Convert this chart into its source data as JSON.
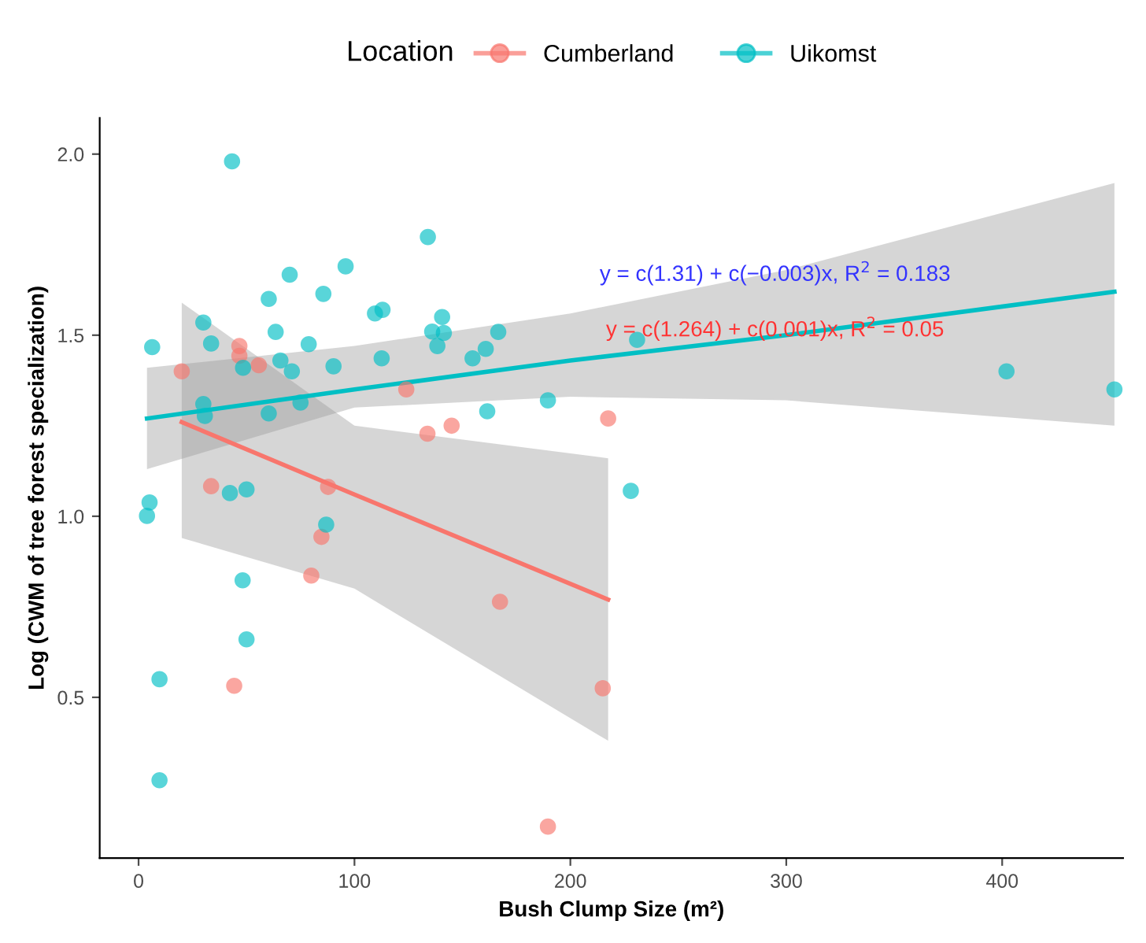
{
  "chart_data": {
    "type": "scatter",
    "xlabel": "Bush Clump Size (m²)",
    "ylabel": "Log (CWM of tree forest specialization)",
    "legend_title": "Location",
    "legend": "top",
    "grid": false,
    "xlim": [
      -18,
      456
    ],
    "ylim": [
      0.056,
      2.1
    ],
    "xticks": [
      0,
      100,
      200,
      300,
      400
    ],
    "yticks": [
      0.5,
      {
        "value": 1,
        "label": "1.0"
      },
      1.5,
      {
        "value": 2,
        "label": "2.0"
      }
    ],
    "series": [
      {
        "name": "Cumberland",
        "color": "#f8766d",
        "marker": "circle",
        "x": [
          46.7,
          46.7,
          20,
          55.7,
          124,
          33.6,
          87.8,
          84.7,
          80,
          44.3,
          133.8,
          145,
          217.5,
          167.4,
          215,
          189.6
        ],
        "values": [
          1.47,
          1.443,
          1.4,
          1.417,
          1.35,
          1.083,
          1.081,
          0.943,
          0.836,
          0.532,
          1.228,
          1.25,
          1.27,
          0.764,
          0.525,
          0.143
        ]
      },
      {
        "name": "Uikomst",
        "color": "#00bfc4",
        "marker": "circle",
        "x": [
          43.3,
          6.3,
          30,
          33.6,
          60.3,
          70,
          63.5,
          78.8,
          85.6,
          95.9,
          109.5,
          113,
          65.7,
          71,
          48.4,
          90.3,
          112.6,
          30,
          30.7,
          60.3,
          75,
          42.3,
          50,
          5.1,
          3.9,
          86.9,
          48.2,
          50,
          9.7,
          9.7,
          134,
          140.6,
          136,
          141.4,
          138.4,
          154.7,
          160.8,
          166.6,
          230.9,
          161.5,
          189.6,
          228,
          402,
          452
        ],
        "values": [
          1.98,
          1.467,
          1.535,
          1.477,
          1.6,
          1.667,
          1.509,
          1.475,
          1.614,
          1.69,
          1.56,
          1.57,
          1.43,
          1.4,
          1.41,
          1.414,
          1.436,
          1.31,
          1.277,
          1.284,
          1.314,
          1.064,
          1.074,
          1.038,
          1.001,
          0.977,
          0.823,
          0.66,
          0.55,
          0.271,
          1.771,
          1.55,
          1.51,
          1.506,
          1.47,
          1.436,
          1.462,
          1.509,
          1.487,
          1.29,
          1.32,
          1.07,
          1.4,
          1.35
        ]
      },
      {
        "color": "#f8766d",
        "type": "line",
        "marker": "none",
        "x": [
          20,
          100,
          217.5
        ],
        "values": [
          1.26,
          1.06,
          0.77
        ],
        "lower": [
          0.94,
          0.8,
          0.38
        ],
        "upper": [
          1.59,
          1.25,
          1.16
        ]
      },
      {
        "color": "#00bfc4",
        "type": "line",
        "marker": "none",
        "x": [
          3.9,
          100,
          200,
          300,
          452
        ],
        "values": [
          1.27,
          1.35,
          1.43,
          1.5,
          1.62
        ],
        "lower": [
          1.13,
          1.3,
          1.33,
          1.32,
          1.25
        ],
        "upper": [
          1.41,
          1.47,
          1.56,
          1.68,
          1.92
        ]
      }
    ],
    "annotations": [
      "y = c(1.31) + c(−0.003)x, R$^{2}$ = 0.183",
      "y = c(1.264) + c(0.001)x, R$^{2}$ = 0.05"
    ]
  }
}
